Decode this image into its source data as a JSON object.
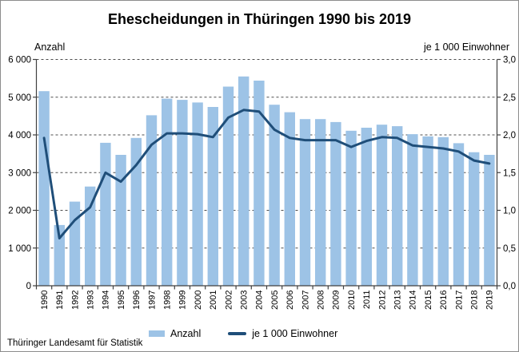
{
  "title": "Ehescheidungen in Thüringen 1990 bis 2019",
  "footer": "Thüringer Landesamt für Statistik",
  "left_axis": {
    "caption": "Anzahl",
    "ticks": [
      "6 000",
      "5 000",
      "4 000",
      "3 000",
      "2 000",
      "1 000",
      "0"
    ]
  },
  "right_axis": {
    "caption": "je 1 000 Einwohner",
    "ticks": [
      "3,0",
      "2,5",
      "2,0",
      "1,5",
      "1,0",
      "0,5",
      "0,0"
    ]
  },
  "legend": {
    "bar_label": "Anzahl",
    "line_label": "je 1 000 Einwohner"
  },
  "colors": {
    "bar": "#9DC3E6",
    "line": "#1F4E79",
    "axis": "#404040",
    "grid": "#4d4d4d",
    "text": "#000000"
  },
  "chart_data": {
    "type": "bar",
    "subtype": "bar+line dual axis",
    "title": "Ehescheidungen in Thüringen 1990 bis 2019",
    "categories": [
      1990,
      1991,
      1992,
      1993,
      1994,
      1995,
      1996,
      1997,
      1998,
      1999,
      2000,
      2001,
      2002,
      2003,
      2004,
      2005,
      2006,
      2007,
      2008,
      2009,
      2010,
      2011,
      2012,
      2013,
      2014,
      2015,
      2016,
      2017,
      2018,
      2019
    ],
    "series": [
      {
        "name": "Anzahl",
        "type": "bar",
        "axis": "left",
        "values": [
          5160,
          1610,
          2230,
          2630,
          3790,
          3470,
          3920,
          4520,
          4960,
          4930,
          4860,
          4740,
          5280,
          5550,
          5440,
          4800,
          4600,
          4420,
          4420,
          4340,
          4110,
          4190,
          4270,
          4230,
          4020,
          3960,
          3940,
          3780,
          3540,
          3470
        ]
      },
      {
        "name": "je 1 000 Einwohner",
        "type": "line",
        "axis": "right",
        "values": [
          1.96,
          0.63,
          0.87,
          1.04,
          1.5,
          1.38,
          1.6,
          1.87,
          2.02,
          2.02,
          2.01,
          1.97,
          2.23,
          2.33,
          2.31,
          2.07,
          1.96,
          1.93,
          1.93,
          1.93,
          1.84,
          1.92,
          1.97,
          1.96,
          1.86,
          1.84,
          1.82,
          1.78,
          1.66,
          1.62
        ]
      }
    ],
    "left_ylabel": "Anzahl",
    "right_ylabel": "je 1 000 Einwohner",
    "left_ylim": [
      0,
      6000
    ],
    "right_ylim": [
      0,
      3.0
    ],
    "grid": true,
    "gridline_step_left": 1000,
    "legend_position": "bottom",
    "x_tick_rotation": -90
  }
}
